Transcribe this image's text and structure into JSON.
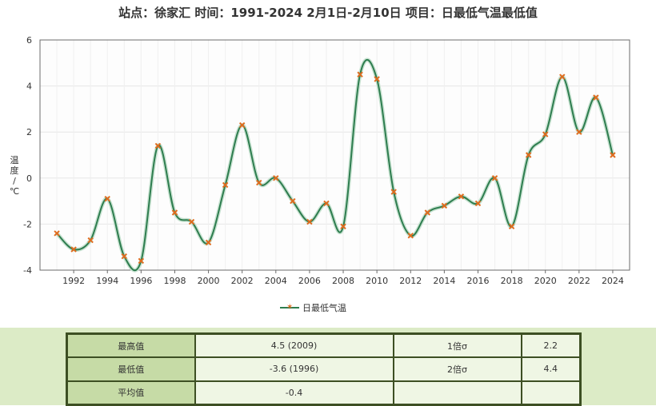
{
  "header": {
    "title": "站点：徐家汇 时间：1991-2024  2月1日-2月10日 项目：日最低气温最低值"
  },
  "axis": {
    "ylabel_chars": [
      "温",
      "度",
      "/",
      "℃"
    ]
  },
  "colors": {
    "line": "#2e7d4f",
    "marker": "#e06b1e",
    "grid": "#e6e6e6",
    "panel": "#dcebc6"
  },
  "chart_data": {
    "type": "line",
    "title": "站点：徐家汇 时间：1991-2024  2月1日-2月10日 项目：日最低气温最低值",
    "xlabel": "",
    "ylabel": "温度/℃",
    "xlim": [
      1990,
      2025
    ],
    "ylim": [
      -4,
      6
    ],
    "xticks": [
      1992,
      1994,
      1996,
      1998,
      2000,
      2002,
      2004,
      2006,
      2008,
      2010,
      2012,
      2014,
      2016,
      2018,
      2020,
      2022,
      2024
    ],
    "yticks": [
      -4,
      -2,
      0,
      2,
      4,
      6
    ],
    "grid": true,
    "legend": "bottom-center",
    "series": [
      {
        "name": "日最低气温",
        "x": [
          1991,
          1992,
          1993,
          1994,
          1995,
          1996,
          1997,
          1998,
          1999,
          2000,
          2001,
          2002,
          2003,
          2004,
          2005,
          2006,
          2007,
          2008,
          2009,
          2010,
          2011,
          2012,
          2013,
          2014,
          2015,
          2016,
          2017,
          2018,
          2019,
          2020,
          2021,
          2022,
          2023,
          2024
        ],
        "y": [
          -2.4,
          -3.1,
          -2.7,
          -0.9,
          -3.4,
          -3.6,
          1.4,
          -1.5,
          -1.9,
          -2.8,
          -0.3,
          2.3,
          -0.2,
          0.0,
          -1.0,
          -1.9,
          -1.1,
          -2.1,
          4.5,
          4.3,
          -0.6,
          -2.5,
          -1.5,
          -1.2,
          -0.8,
          -1.1,
          0.0,
          -2.1,
          1.0,
          1.9,
          4.4,
          2.0,
          3.5,
          1.0
        ]
      }
    ]
  },
  "stats": {
    "rows": [
      {
        "label1": "最高值",
        "value1": "4.5 (2009)",
        "label2": "1倍σ",
        "value2": "2.2"
      },
      {
        "label1": "最低值",
        "value1": "-3.6 (1996)",
        "label2": "2倍σ",
        "value2": "4.4"
      },
      {
        "label1": "平均值",
        "value1": "-0.4",
        "label2": "",
        "value2": ""
      }
    ]
  }
}
